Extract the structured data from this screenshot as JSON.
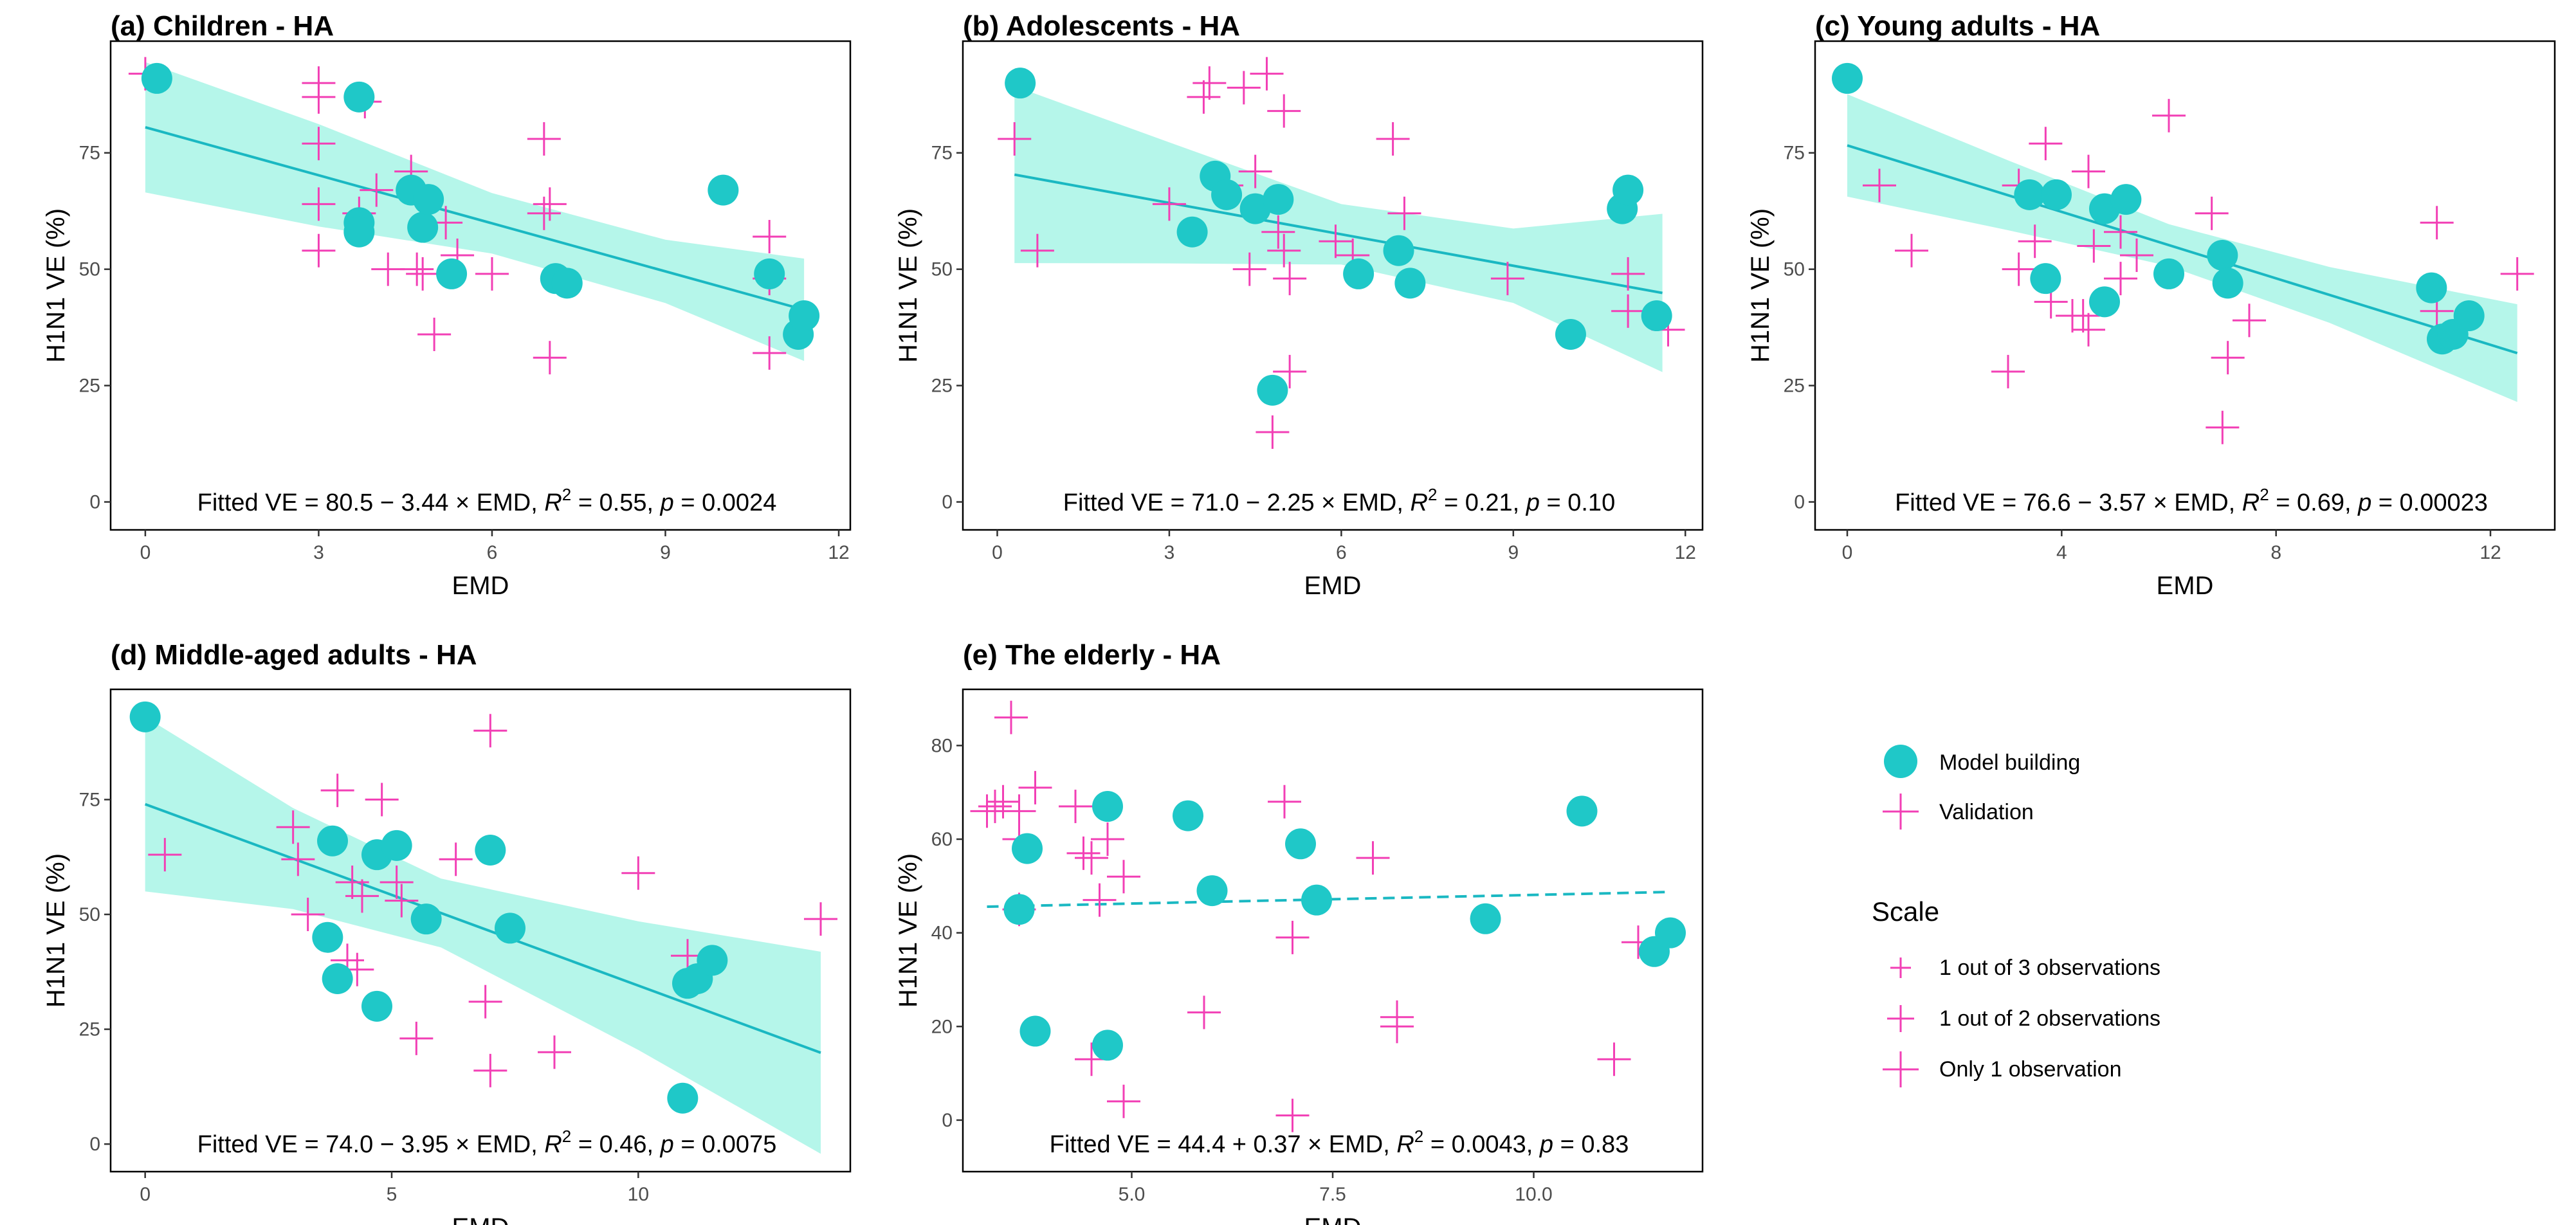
{
  "colors": {
    "model": "#1fc8c8",
    "validation": "#f23fb5",
    "band": "#a8f5e6",
    "line": "#1ab8c2"
  },
  "chart_data": [
    {
      "type": "scatter",
      "id": "a",
      "title": "(a) Children - HA",
      "xlabel": "EMD",
      "ylabel": "H1N1 VE (%)",
      "xlim": [
        -0.6,
        12.2
      ],
      "ylim": [
        -6,
        99
      ],
      "xticks": [
        0,
        3,
        6,
        9,
        12
      ],
      "yticks": [
        0,
        25,
        50,
        75
      ],
      "fit": {
        "intercept": 80.5,
        "slope": -3.44,
        "x": [
          0,
          11.4
        ],
        "band_half": [
          14,
          11,
          6.5,
          6.8,
          11
        ],
        "band_x": [
          0,
          3,
          6,
          9,
          11.4
        ],
        "dashed": false
      },
      "annotation": {
        "lhs": "Fitted VE = 80.5 − 3.44 × EMD, ",
        "r2": "= 0.55, ",
        "pval": "= 0.0024"
      },
      "model": [
        [
          0.2,
          91
        ],
        [
          3.7,
          87
        ],
        [
          3.7,
          60
        ],
        [
          3.7,
          58
        ],
        [
          4.6,
          67
        ],
        [
          4.8,
          59
        ],
        [
          4.9,
          65
        ],
        [
          5.3,
          49
        ],
        [
          7.1,
          48
        ],
        [
          7.3,
          47
        ],
        [
          10.0,
          67
        ],
        [
          10.8,
          49
        ],
        [
          11.3,
          36
        ],
        [
          11.4,
          40
        ]
      ],
      "validation": [
        [
          0,
          92
        ],
        [
          3,
          90
        ],
        [
          3,
          87
        ],
        [
          3.8,
          86
        ],
        [
          3,
          77
        ],
        [
          3,
          64
        ],
        [
          3,
          54
        ],
        [
          3.7,
          62
        ],
        [
          4,
          67
        ],
        [
          4.2,
          50
        ],
        [
          4.6,
          71
        ],
        [
          4.7,
          50
        ],
        [
          4.8,
          49
        ],
        [
          5,
          36
        ],
        [
          5.2,
          60
        ],
        [
          5.4,
          53
        ],
        [
          6,
          49
        ],
        [
          6.9,
          78
        ],
        [
          6.9,
          62
        ],
        [
          7,
          64
        ],
        [
          7,
          31
        ],
        [
          10.8,
          57
        ],
        [
          10.8,
          48
        ],
        [
          10.8,
          32
        ]
      ]
    },
    {
      "type": "scatter",
      "id": "b",
      "title": "(b) Adolescents - HA",
      "xlabel": "EMD",
      "ylabel": "H1N1 VE (%)",
      "xlim": [
        -0.6,
        12.3
      ],
      "ylim": [
        -6,
        99
      ],
      "xticks": [
        0,
        3,
        6,
        9,
        12
      ],
      "yticks": [
        0,
        25,
        50,
        75
      ],
      "fit": {
        "intercept": 71.0,
        "slope": -2.25,
        "x": [
          0.3,
          11.6
        ],
        "band_half": [
          19,
          13,
          6.5,
          8,
          17
        ],
        "band_x": [
          0.3,
          3,
          6,
          9,
          11.6
        ],
        "dashed": false
      },
      "annotation": {
        "lhs": "Fitted VE = 71.0 − 2.25 × EMD, ",
        "r2": "= 0.21, ",
        "pval": "= 0.10"
      },
      "model": [
        [
          0.4,
          90
        ],
        [
          3.4,
          58
        ],
        [
          3.8,
          70
        ],
        [
          4.0,
          66
        ],
        [
          4.5,
          63
        ],
        [
          4.8,
          24
        ],
        [
          4.9,
          65
        ],
        [
          6.3,
          49
        ],
        [
          7.0,
          54
        ],
        [
          7.2,
          47
        ],
        [
          10.0,
          36
        ],
        [
          10.9,
          63
        ],
        [
          11.0,
          67
        ],
        [
          11.5,
          40
        ]
      ],
      "validation": [
        [
          0.3,
          78
        ],
        [
          0.7,
          54
        ],
        [
          3,
          64
        ],
        [
          3.6,
          87
        ],
        [
          3.7,
          90
        ],
        [
          4.0,
          68
        ],
        [
          4.3,
          89
        ],
        [
          4.4,
          50
        ],
        [
          4.5,
          71
        ],
        [
          4.7,
          92
        ],
        [
          4.8,
          15
        ],
        [
          4.9,
          58
        ],
        [
          5.0,
          84
        ],
        [
          5.0,
          54
        ],
        [
          5.1,
          28
        ],
        [
          5.1,
          48
        ],
        [
          5.9,
          56
        ],
        [
          6.2,
          53
        ],
        [
          6.9,
          78
        ],
        [
          7.1,
          62
        ],
        [
          8.9,
          48
        ],
        [
          11.0,
          49
        ],
        [
          11.0,
          41
        ],
        [
          11.7,
          37
        ]
      ]
    },
    {
      "type": "scatter",
      "id": "c",
      "title": "(c) Young adults - HA",
      "xlabel": "EMD",
      "ylabel": "H1N1 VE (%)",
      "xlim": [
        -0.6,
        13.2
      ],
      "ylim": [
        -6,
        99
      ],
      "xticks": [
        0,
        4,
        8,
        12
      ],
      "yticks": [
        0,
        25,
        50,
        75
      ],
      "fit": {
        "intercept": 76.6,
        "slope": -3.57,
        "x": [
          0,
          12.5
        ],
        "band_half": [
          11,
          7.5,
          4.5,
          6,
          10.5
        ],
        "band_x": [
          0,
          3,
          6,
          9,
          12.5
        ],
        "dashed": false
      },
      "annotation": {
        "lhs": "Fitted VE = 76.6 − 3.57 × EMD, ",
        "r2": "= 0.69, ",
        "pval": "= 0.00023"
      },
      "model": [
        [
          0,
          91
        ],
        [
          3.4,
          66
        ],
        [
          3.7,
          48
        ],
        [
          3.9,
          66
        ],
        [
          4.8,
          63
        ],
        [
          4.8,
          43
        ],
        [
          5.2,
          65
        ],
        [
          6.0,
          49
        ],
        [
          7.0,
          53
        ],
        [
          7.1,
          47
        ],
        [
          10.9,
          46
        ],
        [
          11.1,
          35
        ],
        [
          11.3,
          36
        ],
        [
          11.6,
          40
        ]
      ],
      "validation": [
        [
          0.6,
          68
        ],
        [
          1.2,
          54
        ],
        [
          3.0,
          28
        ],
        [
          3.2,
          50
        ],
        [
          3.2,
          68
        ],
        [
          3.5,
          56
        ],
        [
          3.7,
          77
        ],
        [
          3.8,
          43
        ],
        [
          4.2,
          40
        ],
        [
          4.4,
          40
        ],
        [
          4.5,
          37
        ],
        [
          4.5,
          71
        ],
        [
          4.6,
          55
        ],
        [
          5.1,
          48
        ],
        [
          5.1,
          58
        ],
        [
          5.4,
          53
        ],
        [
          6.0,
          83
        ],
        [
          6.8,
          62
        ],
        [
          7.0,
          16
        ],
        [
          7.1,
          31
        ],
        [
          7.5,
          39
        ],
        [
          11.0,
          60
        ],
        [
          11.0,
          41
        ],
        [
          12.5,
          49
        ]
      ]
    },
    {
      "type": "scatter",
      "id": "d",
      "title": "(d) Middle-aged adults - HA",
      "xlabel": "EMD",
      "ylabel": "H1N1 VE (%)",
      "xlim": [
        -0.7,
        14.3
      ],
      "ylim": [
        -6,
        99
      ],
      "xticks": [
        0,
        5,
        10
      ],
      "yticks": [
        0,
        25,
        50,
        75
      ],
      "fit": {
        "intercept": 74.0,
        "slope": -3.95,
        "x": [
          0,
          13.7
        ],
        "band_half": [
          19,
          11,
          7.5,
          14,
          22
        ],
        "band_x": [
          0,
          3,
          6,
          10,
          13.7
        ],
        "dashed": false
      },
      "annotation": {
        "lhs": "Fitted VE = 74.0 − 3.95 × EMD, ",
        "r2": "= 0.46, ",
        "pval": "= 0.0075"
      },
      "model": [
        [
          0,
          93
        ],
        [
          3.7,
          45
        ],
        [
          3.8,
          66
        ],
        [
          3.9,
          36
        ],
        [
          4.7,
          30
        ],
        [
          4.7,
          63
        ],
        [
          5.1,
          65
        ],
        [
          5.7,
          49
        ],
        [
          7.0,
          64
        ],
        [
          7.4,
          47
        ],
        [
          10.9,
          10
        ],
        [
          11.0,
          35
        ],
        [
          11.2,
          36
        ],
        [
          11.5,
          40
        ]
      ],
      "validation": [
        [
          0.4,
          63
        ],
        [
          3.0,
          69
        ],
        [
          3.1,
          62
        ],
        [
          3.3,
          50
        ],
        [
          3.9,
          77
        ],
        [
          4.1,
          40
        ],
        [
          4.2,
          57
        ],
        [
          4.3,
          38
        ],
        [
          4.4,
          54
        ],
        [
          4.8,
          75
        ],
        [
          5.1,
          57
        ],
        [
          5.2,
          53
        ],
        [
          5.5,
          23
        ],
        [
          6.3,
          62
        ],
        [
          6.9,
          31
        ],
        [
          7.0,
          16
        ],
        [
          7.0,
          90
        ],
        [
          8.3,
          20
        ],
        [
          10.0,
          59
        ],
        [
          11.0,
          41
        ],
        [
          13.7,
          49
        ]
      ]
    },
    {
      "type": "scatter",
      "id": "e",
      "title": "(e) The elderly - HA",
      "xlabel": "EMD",
      "ylabel": "H1N1 VE (%)",
      "xlim": [
        2.9,
        12.1
      ],
      "ylim": [
        -11,
        92
      ],
      "xticks": [
        5.0,
        7.5,
        10.0
      ],
      "xticklabels": [
        "5.0",
        "7.5",
        "10.0"
      ],
      "yticks": [
        0,
        20,
        40,
        60,
        80
      ],
      "fit": {
        "intercept": 44.4,
        "slope": 0.37,
        "x": [
          3.2,
          11.7
        ],
        "dashed": true
      },
      "annotation": {
        "lhs": "Fitted VE = 44.4 + 0.37 × EMD, ",
        "r2": "= 0.0043, ",
        "pval": "= 0.83"
      },
      "model": [
        [
          3.6,
          45
        ],
        [
          3.7,
          58
        ],
        [
          3.8,
          19
        ],
        [
          4.7,
          67
        ],
        [
          4.7,
          16
        ],
        [
          5.7,
          65
        ],
        [
          6.0,
          49
        ],
        [
          7.1,
          59
        ],
        [
          7.3,
          47
        ],
        [
          9.4,
          43
        ],
        [
          10.6,
          66
        ],
        [
          11.5,
          36
        ],
        [
          11.7,
          40
        ]
      ],
      "validation": [
        [
          3.2,
          66
        ],
        [
          3.3,
          67
        ],
        [
          3.4,
          68
        ],
        [
          3.5,
          86
        ],
        [
          3.6,
          66
        ],
        [
          3.6,
          60
        ],
        [
          3.6,
          45
        ],
        [
          3.8,
          71
        ],
        [
          4.3,
          67
        ],
        [
          4.4,
          57
        ],
        [
          4.5,
          56
        ],
        [
          4.5,
          13
        ],
        [
          4.6,
          47
        ],
        [
          4.7,
          60
        ],
        [
          4.9,
          4
        ],
        [
          4.9,
          52
        ],
        [
          5.9,
          23
        ],
        [
          6.9,
          68
        ],
        [
          7.0,
          39
        ],
        [
          7.0,
          1
        ],
        [
          8.0,
          56
        ],
        [
          8.3,
          22
        ],
        [
          8.3,
          20
        ],
        [
          11.0,
          13
        ],
        [
          11.3,
          38
        ]
      ]
    }
  ],
  "legend": {
    "model_label": "Model building",
    "validation_label": "Validation",
    "scale_title": "Scale",
    "scale_items": [
      "1 out of 3 observations",
      "1 out of 2 observations",
      "Only 1 observation"
    ]
  }
}
